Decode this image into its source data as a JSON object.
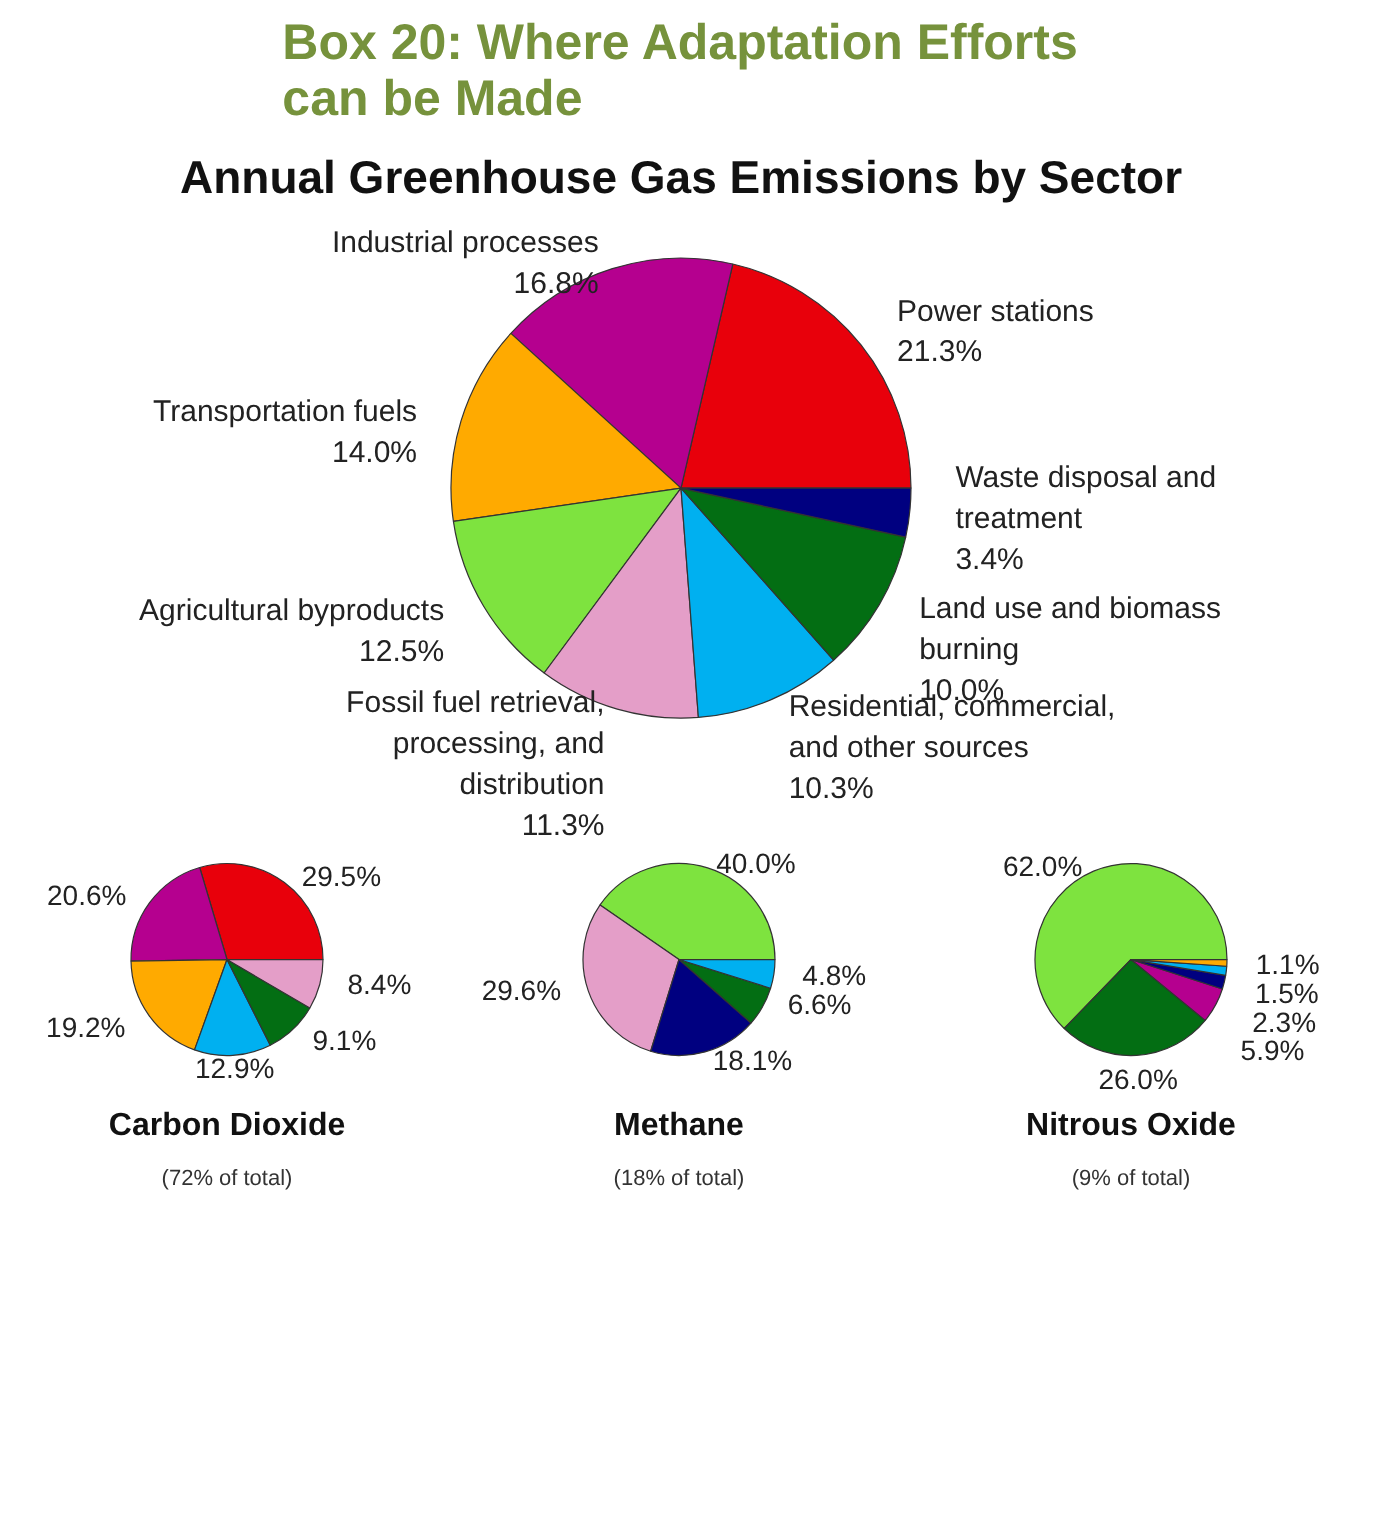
{
  "chart_data": [
    {
      "type": "pie",
      "title": "Box 20: Where Adaptation Efforts can be Made",
      "subtitle": "Annual Greenhouse Gas Emissions by Sector",
      "categories": [
        "Power stations",
        "Industrial processes",
        "Transportation fuels",
        "Agricultural byproducts",
        "Fossil fuel retrieval, processing, and distribution",
        "Residential, commercial, and other sources",
        "Land use and biomass burning",
        "Waste disposal and treatment"
      ],
      "values": [
        21.3,
        16.8,
        14.0,
        12.5,
        11.3,
        10.3,
        10.0,
        3.4
      ],
      "value_labels": [
        "21.3%",
        "16.8%",
        "14.0%",
        "12.5%",
        "11.3%",
        "10.3%",
        "10.0%",
        "3.4%"
      ],
      "colors": [
        "#e8000b",
        "#b5008f",
        "#ffaa00",
        "#7ee33f",
        "#e49ec8",
        "#00b0f0",
        "#036e13",
        "#000080"
      ]
    },
    {
      "type": "pie",
      "title": "Carbon Dioxide",
      "subtitle": "(72% of total)",
      "categories": [
        null,
        null,
        null,
        null,
        null,
        null
      ],
      "values": [
        29.5,
        20.6,
        19.2,
        12.9,
        9.1,
        8.4
      ],
      "value_labels": [
        "29.5%",
        "20.6%",
        "19.2%",
        "12.9%",
        "9.1%",
        "8.4%"
      ],
      "colors": [
        "#e8000b",
        "#b5008f",
        "#ffaa00",
        "#00b0f0",
        "#036e13",
        "#e49ec8"
      ]
    },
    {
      "type": "pie",
      "title": "Methane",
      "subtitle": "(18% of total)",
      "categories": [
        null,
        null,
        null,
        null,
        null
      ],
      "values": [
        40.0,
        29.6,
        18.1,
        6.6,
        4.8
      ],
      "value_labels": [
        "40.0%",
        "29.6%",
        "18.1%",
        "6.6%",
        "4.8%"
      ],
      "colors": [
        "#7ee33f",
        "#e49ec8",
        "#000080",
        "#036e13",
        "#00b0f0"
      ]
    },
    {
      "type": "pie",
      "title": "Nitrous Oxide",
      "subtitle": "(9% of total)",
      "categories": [
        null,
        null,
        null,
        null,
        null,
        null
      ],
      "values": [
        62.0,
        26.0,
        5.9,
        2.3,
        1.5,
        1.1
      ],
      "value_labels": [
        "62.0%",
        "26.0%",
        "5.9%",
        "2.3%",
        "1.5%",
        "1.1%"
      ],
      "colors": [
        "#7ee33f",
        "#036e13",
        "#b5008f",
        "#000080",
        "#00b0f0",
        "#ffaa00"
      ]
    }
  ]
}
